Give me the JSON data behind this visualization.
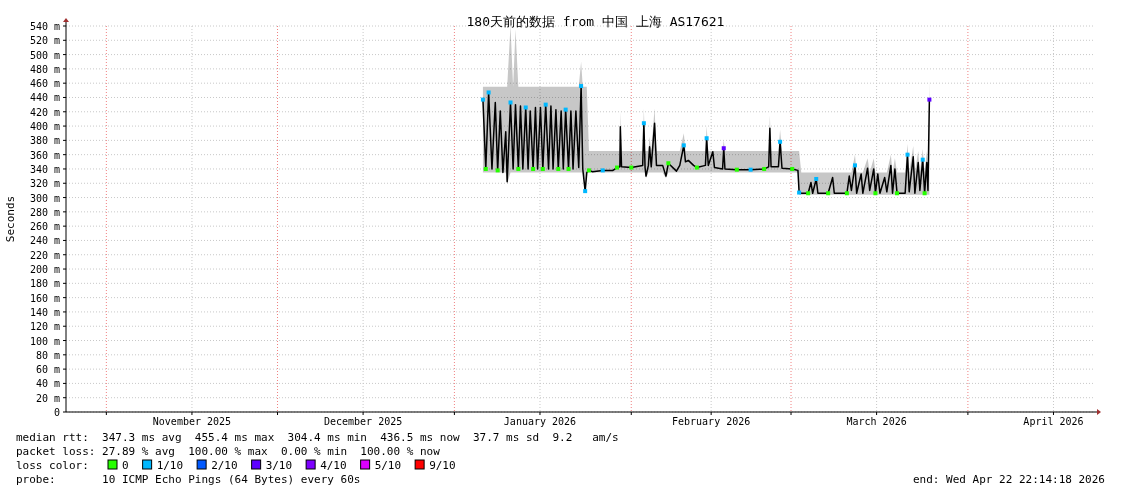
{
  "chart_data": {
    "type": "line",
    "title": "180天前的数据 from 中国 上海 AS17621",
    "ylabel": "Seconds",
    "xlim": [
      "2025-10-24T22:14",
      "2026-04-22T22:14"
    ],
    "xticks": [
      {
        "value": "2025-11-01",
        "label": null
      },
      {
        "value": "2025-11-16",
        "label": "November 2025"
      },
      {
        "value": "2025-12-01",
        "label": null
      },
      {
        "value": "2025-12-16",
        "label": "December 2025"
      },
      {
        "value": "2026-01-01",
        "label": null
      },
      {
        "value": "2026-01-16",
        "label": "January 2026"
      },
      {
        "value": "2026-02-01",
        "label": null
      },
      {
        "value": "2026-02-15",
        "label": "February 2026"
      },
      {
        "value": "2026-03-01",
        "label": null
      },
      {
        "value": "2026-03-16",
        "label": "March 2026"
      },
      {
        "value": "2026-04-01",
        "label": null
      },
      {
        "value": "2026-04-16",
        "label": "April 2026"
      }
    ],
    "ylim": [
      0,
      540
    ],
    "yticks": [
      0,
      {
        "value": 20,
        "label": "20 m"
      },
      {
        "value": 40,
        "label": "40 m"
      },
      {
        "value": 60,
        "label": "60 m"
      },
      {
        "value": 80,
        "label": "80 m"
      },
      {
        "value": 100,
        "label": "100 m"
      },
      {
        "value": 120,
        "label": "120 m"
      },
      {
        "value": 140,
        "label": "140 m"
      },
      {
        "value": 160,
        "label": "160 m"
      },
      {
        "value": 180,
        "label": "180 m"
      },
      {
        "value": 200,
        "label": "200 m"
      },
      {
        "value": 220,
        "label": "220 m"
      },
      {
        "value": 240,
        "label": "240 m"
      },
      {
        "value": 260,
        "label": "260 m"
      },
      {
        "value": 280,
        "label": "280 m"
      },
      {
        "value": 300,
        "label": "300 m"
      },
      {
        "value": 320,
        "label": "320 m"
      },
      {
        "value": 340,
        "label": "340 m"
      },
      {
        "value": 360,
        "label": "360 m"
      },
      {
        "value": 380,
        "label": "380 m"
      },
      {
        "value": 400,
        "label": "400 m"
      },
      {
        "value": 420,
        "label": "420 m"
      },
      {
        "value": 440,
        "label": "440 m"
      },
      {
        "value": 460,
        "label": "460 m"
      },
      {
        "value": 480,
        "label": "480 m"
      },
      {
        "value": 500,
        "label": "500 m"
      },
      {
        "value": 520,
        "label": "520 m"
      },
      {
        "value": 540,
        "label": "540 m"
      }
    ],
    "grid": true,
    "legend": "bottom",
    "legend_title": "loss color:",
    "series": [
      {
        "type": "line",
        "color": "#000000",
        "x": [
          "2026-01-06T00:00",
          "2026-01-06T12:00",
          "2026-01-07T00:00",
          "2026-01-07T14:00",
          "2026-01-08T04:00",
          "2026-01-08T14:00",
          "2026-01-09T01:00",
          "2026-01-09T12:00",
          "2026-01-10T00:00",
          "2026-01-10T06:00",
          "2026-01-10T20:00",
          "2026-01-11T07:00",
          "2026-01-11T17:00",
          "2026-01-12T05:00",
          "2026-01-12T14:00",
          "2026-01-13T00:00",
          "2026-01-13T12:00",
          "2026-01-13T22:00",
          "2026-01-14T07:00",
          "2026-01-14T19:00",
          "2026-01-15T05:00",
          "2026-01-15T14:00",
          "2026-01-16T02:00",
          "2026-01-16T12:00",
          "2026-01-17T00:00",
          "2026-01-17T12:00",
          "2026-01-17T22:00",
          "2026-01-18T07:00",
          "2026-01-18T19:00",
          "2026-01-19T05:00",
          "2026-01-19T17:00",
          "2026-01-20T02:00",
          "2026-01-20T12:00",
          "2026-01-21T00:00",
          "2026-01-21T10:00",
          "2026-01-21T19:00",
          "2026-01-22T07:00",
          "2026-01-22T19:00",
          "2026-01-23T05:00",
          "2026-01-23T12:00",
          "2026-01-23T22:00",
          "2026-01-24T05:00",
          "2026-01-24T14:00",
          "2026-01-25T05:00",
          "2026-01-27T00:00",
          "2026-01-28T19:00",
          "2026-01-29T12:00",
          "2026-01-30T00:00",
          "2026-01-30T02:00",
          "2026-01-30T07:00",
          "2026-02-01T00:00",
          "2026-02-03T00:00",
          "2026-02-03T05:00",
          "2026-02-03T10:00",
          "2026-02-03T14:00",
          "2026-02-04T00:00",
          "2026-02-04T05:00",
          "2026-02-04T12:00",
          "2026-02-05T02:00",
          "2026-02-05T10:00",
          "2026-02-06T12:00",
          "2026-02-07T02:00",
          "2026-02-07T12:00",
          "2026-02-08T22:00",
          "2026-02-09T12:00",
          "2026-02-10T05:00",
          "2026-02-10T12:00",
          "2026-02-11T00:00",
          "2026-02-11T22:00",
          "2026-02-12T12:00",
          "2026-02-14T00:00",
          "2026-02-14T05:00",
          "2026-02-14T12:00",
          "2026-02-15T07:00",
          "2026-02-15T14:00",
          "2026-02-17T00:00",
          "2026-02-17T05:00",
          "2026-02-17T10:00",
          "2026-02-19T12:00",
          "2026-02-21T22:00",
          "2026-02-24T07:00",
          "2026-02-25T02:00",
          "2026-02-25T07:00",
          "2026-02-25T12:00",
          "2026-02-26T19:00",
          "2026-02-27T02:00",
          "2026-02-27T10:00",
          "2026-03-01T05:00",
          "2026-03-02T05:00",
          "2026-03-02T10:00",
          "2026-03-02T19:00",
          "2026-03-04T00:00",
          "2026-03-04T12:00",
          "2026-03-04T19:00",
          "2026-03-05T10:00",
          "2026-03-05T17:00",
          "2026-03-07T12:00",
          "2026-03-08T07:00",
          "2026-03-08T14:00",
          "2026-03-10T19:00",
          "2026-03-11T05:00",
          "2026-03-11T14:00",
          "2026-03-12T05:00",
          "2026-03-12T12:00",
          "2026-03-13T07:00",
          "2026-03-13T14:00",
          "2026-03-14T10:00",
          "2026-03-14T19:00",
          "2026-03-15T12:00",
          "2026-03-15T19:00",
          "2026-03-16T05:00",
          "2026-03-16T14:00",
          "2026-03-17T10:00",
          "2026-03-17T19:00",
          "2026-03-18T12:00",
          "2026-03-18T19:00",
          "2026-03-19T05:00",
          "2026-03-19T14:00",
          "2026-03-21T00:00",
          "2026-03-21T10:00",
          "2026-03-21T17:00",
          "2026-03-22T10:00",
          "2026-03-22T17:00",
          "2026-03-23T07:00",
          "2026-03-23T14:00",
          "2026-03-24T02:00",
          "2026-03-24T10:00",
          "2026-03-24T19:00",
          "2026-03-25T00:00",
          "2026-03-25T06:00"
        ],
        "values": [
          437,
          340,
          447,
          340,
          433,
          338,
          421,
          335,
          392,
          322,
          433,
          340,
          430,
          340,
          428,
          340,
          426,
          340,
          421,
          340,
          426,
          340,
          426,
          340,
          430,
          340,
          428,
          340,
          423,
          340,
          421,
          340,
          423,
          340,
          421,
          340,
          421,
          342,
          456,
          340,
          309,
          335,
          338,
          336,
          338,
          338,
          342,
          343,
          399,
          343,
          342,
          345,
          404,
          342,
          330,
          345,
          371,
          343,
          404,
          345,
          345,
          330,
          348,
          337,
          345,
          373,
          350,
          352,
          345,
          342,
          345,
          383,
          345,
          364,
          342,
          340,
          369,
          340,
          339,
          339,
          340,
          343,
          397,
          343,
          343,
          378,
          341,
          340,
          338,
          307,
          306,
          306,
          321,
          306,
          326,
          306,
          306,
          328,
          306,
          306,
          330,
          310,
          345,
          306,
          333,
          306,
          341,
          310,
          340,
          306,
          333,
          306,
          328,
          308,
          345,
          306,
          340,
          306,
          306,
          360,
          308,
          357,
          306,
          349,
          310,
          353,
          306,
          349,
          310,
          437
        ],
        "lower": [
          335,
          335,
          335,
          335,
          335,
          335,
          335,
          335,
          335,
          319,
          335,
          335,
          335,
          335,
          335,
          335,
          335,
          335,
          335,
          335,
          335,
          335,
          335,
          335,
          335,
          335,
          335,
          335,
          335,
          335,
          335,
          335,
          335,
          335,
          335,
          335,
          335,
          335,
          335,
          335,
          306,
          335,
          335,
          335,
          335,
          335,
          335,
          335,
          335,
          335,
          335,
          335,
          335,
          335,
          327,
          335,
          335,
          335,
          335,
          335,
          335,
          327,
          335,
          335,
          335,
          335,
          335,
          335,
          335,
          335,
          335,
          335,
          335,
          335,
          335,
          335,
          335,
          335,
          335,
          335,
          335,
          335,
          335,
          335,
          335,
          335,
          335,
          335,
          335,
          304,
          304,
          304,
          304,
          304,
          304,
          304,
          304,
          304,
          304,
          304,
          304,
          304,
          304,
          304,
          304,
          304,
          304,
          304,
          304,
          304,
          304,
          304,
          304,
          304,
          304,
          304,
          304,
          304,
          304,
          304,
          304,
          304,
          304,
          304,
          304,
          304,
          304,
          304,
          304,
          304
        ],
        "upper": [
          455,
          455,
          455,
          455,
          455,
          455,
          455,
          455,
          455,
          455,
          540,
          455,
          535,
          455,
          455,
          455,
          455,
          455,
          455,
          455,
          455,
          455,
          455,
          455,
          455,
          455,
          455,
          455,
          455,
          455,
          455,
          455,
          455,
          455,
          455,
          455,
          455,
          455,
          490,
          455,
          455,
          455,
          365,
          365,
          365,
          365,
          365,
          365,
          420,
          365,
          365,
          365,
          425,
          365,
          365,
          365,
          385,
          365,
          425,
          365,
          365,
          365,
          365,
          365,
          365,
          390,
          365,
          365,
          365,
          365,
          365,
          400,
          365,
          365,
          365,
          365,
          380,
          365,
          365,
          365,
          365,
          365,
          415,
          365,
          365,
          395,
          365,
          365,
          365,
          365,
          335,
          335,
          335,
          335,
          335,
          335,
          335,
          335,
          335,
          335,
          335,
          335,
          360,
          335,
          335,
          335,
          355,
          335,
          355,
          335,
          335,
          335,
          335,
          335,
          360,
          335,
          355,
          335,
          335,
          375,
          335,
          372,
          335,
          365,
          335,
          368,
          335,
          365,
          335,
          465
        ]
      },
      {
        "type": "scatter",
        "name": "0",
        "color": "#26ff00",
        "marker": "square",
        "x": [
          "2026-01-06T12:00",
          "2026-01-08T14:00",
          "2026-01-12T05:00",
          "2026-01-14T19:00",
          "2026-01-16T12:00",
          "2026-01-19T05:00",
          "2026-01-21T00:00",
          "2026-01-24T14:00",
          "2026-01-29T12:00",
          "2026-02-01T00:00",
          "2026-02-07T12:00",
          "2026-02-12T12:00",
          "2026-02-19T12:00",
          "2026-02-24T07:00",
          "2026-03-01T05:00",
          "2026-03-04T00:00",
          "2026-03-07T12:00",
          "2026-03-10T19:00",
          "2026-03-15T19:00",
          "2026-03-19T14:00",
          "2026-03-24T10:00"
        ],
        "values": [
          340,
          338,
          340,
          340,
          340,
          340,
          340,
          338,
          342,
          342,
          348,
          342,
          339,
          340,
          340,
          306,
          306,
          306,
          306,
          306,
          306
        ]
      },
      {
        "type": "scatter",
        "name": "1/10",
        "color": "#00b8ff",
        "marker": "square",
        "x": [
          "2026-01-06T00:00",
          "2026-01-07T00:00",
          "2026-01-10T20:00",
          "2026-01-13T12:00",
          "2026-01-17T00:00",
          "2026-01-20T12:00",
          "2026-01-23T05:00",
          "2026-01-23T22:00",
          "2026-01-27T00:00",
          "2026-02-03T05:00",
          "2026-02-10T05:00",
          "2026-02-14T05:00",
          "2026-02-21T22:00",
          "2026-02-27T02:00",
          "2026-03-02T10:00",
          "2026-03-05T10:00",
          "2026-03-12T05:00",
          "2026-03-21T10:00",
          "2026-03-24T02:00"
        ],
        "values": [
          437,
          447,
          433,
          426,
          430,
          423,
          456,
          309,
          338,
          404,
          373,
          383,
          339,
          378,
          307,
          326,
          345,
          360,
          353
        ]
      },
      {
        "type": "scatter",
        "name": "2/10",
        "color": "#0059ff",
        "marker": "square"
      },
      {
        "type": "scatter",
        "name": "3/10",
        "color": "#5e00ff",
        "marker": "square",
        "x": [
          "2026-02-17T05:00",
          "2026-03-25T06:00"
        ],
        "values": [
          369,
          437
        ]
      },
      {
        "type": "scatter",
        "name": "4/10",
        "color": "#7e00ff",
        "marker": "square"
      },
      {
        "type": "scatter",
        "name": "5/10",
        "color": "#dd00ff",
        "marker": "square"
      },
      {
        "type": "scatter",
        "name": "9/10",
        "color": "#ff0000",
        "marker": "square"
      }
    ],
    "annotations": [
      "median rtt:  347.3 ms avg  455.4 ms max  304.4 ms min  436.5 ms now  37.7 ms sd  9.2   am/s",
      "packet loss: 27.89 % avg  100.00 % max  0.00 % min  100.00 % now",
      "probe:       10 ICMP Echo Pings (64 Bytes) every 60s",
      "end: Wed Apr 22 22:14:18 2026"
    ]
  }
}
